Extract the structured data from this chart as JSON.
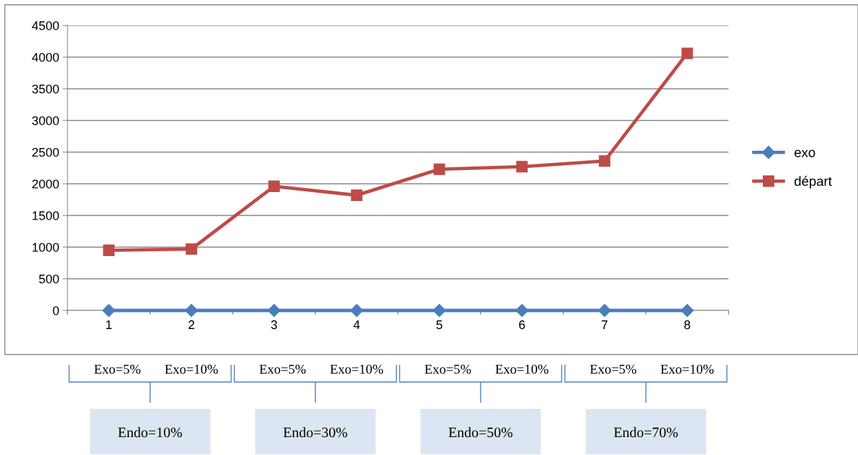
{
  "chart_data": {
    "type": "line",
    "categories": [
      "1",
      "2",
      "3",
      "4",
      "5",
      "6",
      "7",
      "8"
    ],
    "series": [
      {
        "name": "exo",
        "color": "#4a7ebb",
        "marker": "diamond",
        "values": [
          0,
          0,
          0,
          0,
          0,
          0,
          0,
          0
        ]
      },
      {
        "name": "départ",
        "color": "#be4b48",
        "marker": "square",
        "values": [
          950,
          970,
          1960,
          1820,
          2230,
          2270,
          2360,
          4060
        ]
      }
    ],
    "ylim": [
      0,
      4500
    ],
    "yticks": [
      0,
      500,
      1000,
      1500,
      2000,
      2500,
      3000,
      3500,
      4000,
      4500
    ],
    "grid": "y",
    "legend": "right",
    "line_style": "solid",
    "annotations": [
      "Exo=5%",
      "Exo=10%",
      "Exo=5%",
      "Exo=10%",
      "Exo=5%",
      "Exo=10%",
      "Exo=5%",
      "Exo=10%",
      "Endo=10%",
      "Endo=30%",
      "Endo=50%",
      "Endo=70%"
    ]
  }
}
